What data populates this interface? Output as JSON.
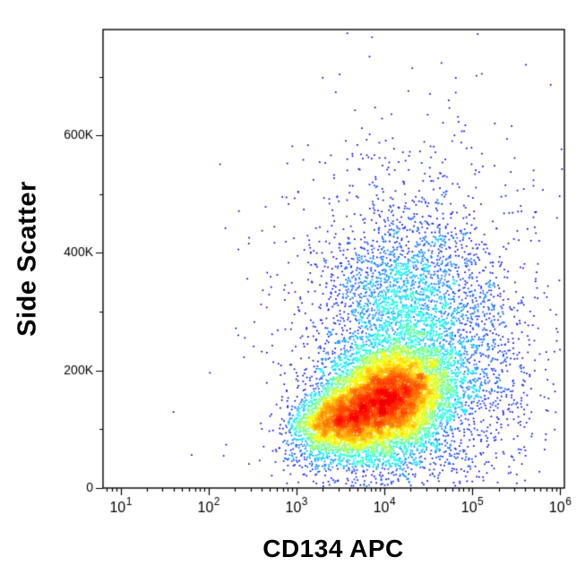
{
  "chart_data": {
    "type": "scatter",
    "subtype": "flow_cytometry_pseudocolor_density",
    "title": "",
    "xlabel": "CD134 APC",
    "ylabel": "Side Scatter",
    "x_scale": "log10",
    "x_range_log10": [
      0.8,
      6.05
    ],
    "x_ticks": [
      {
        "base": "10",
        "exp": "1",
        "value": 10
      },
      {
        "base": "10",
        "exp": "2",
        "value": 100
      },
      {
        "base": "10",
        "exp": "3",
        "value": 1000
      },
      {
        "base": "10",
        "exp": "4",
        "value": 10000
      },
      {
        "base": "10",
        "exp": "5",
        "value": 100000
      },
      {
        "base": "10",
        "exp": "6",
        "value": 1000000
      }
    ],
    "y_scale": "linear",
    "ylim": [
      0,
      780000
    ],
    "y_ticks": [
      {
        "label": "0",
        "value": 0
      },
      {
        "label": "200K",
        "value": 200000
      },
      {
        "label": "400K",
        "value": 400000
      },
      {
        "label": "600K",
        "value": 600000
      }
    ],
    "y_minor_step": 100000,
    "grid": false,
    "legend": false,
    "colormap": "density-jet (blue = sparse, red = dense)",
    "point_count": 16200,
    "seed": 42,
    "populations": [
      {
        "name": "main_core",
        "n": 9000,
        "x_log10_mean": 4.05,
        "x_log10_sd": 0.35,
        "y_mean": 150000,
        "y_sd": 45000,
        "xy_corr": 0.25
      },
      {
        "name": "left_shoulder",
        "n": 2500,
        "x_log10_mean": 3.45,
        "x_log10_sd": 0.25,
        "y_mean": 115000,
        "y_sd": 30000,
        "xy_corr": 0.2
      },
      {
        "name": "upper_spread",
        "n": 2200,
        "x_log10_mean": 4.15,
        "x_log10_sd": 0.45,
        "y_mean": 295000,
        "y_sd": 80000,
        "xy_corr": 0.15
      },
      {
        "name": "sparse_halo",
        "n": 1200,
        "x_log10_mean": 4.3,
        "x_log10_sd": 0.75,
        "y_mean": 330000,
        "y_sd": 150000,
        "xy_corr": 0.0
      },
      {
        "name": "right_tail",
        "n": 800,
        "x_log10_mean": 4.95,
        "x_log10_sd": 0.4,
        "y_mean": 210000,
        "y_sd": 90000,
        "xy_corr": 0.0
      },
      {
        "name": "low_tail",
        "n": 500,
        "x_log10_mean": 3.9,
        "x_log10_sd": 0.6,
        "y_mean": 55000,
        "y_sd": 30000,
        "xy_corr": 0.0
      }
    ]
  }
}
